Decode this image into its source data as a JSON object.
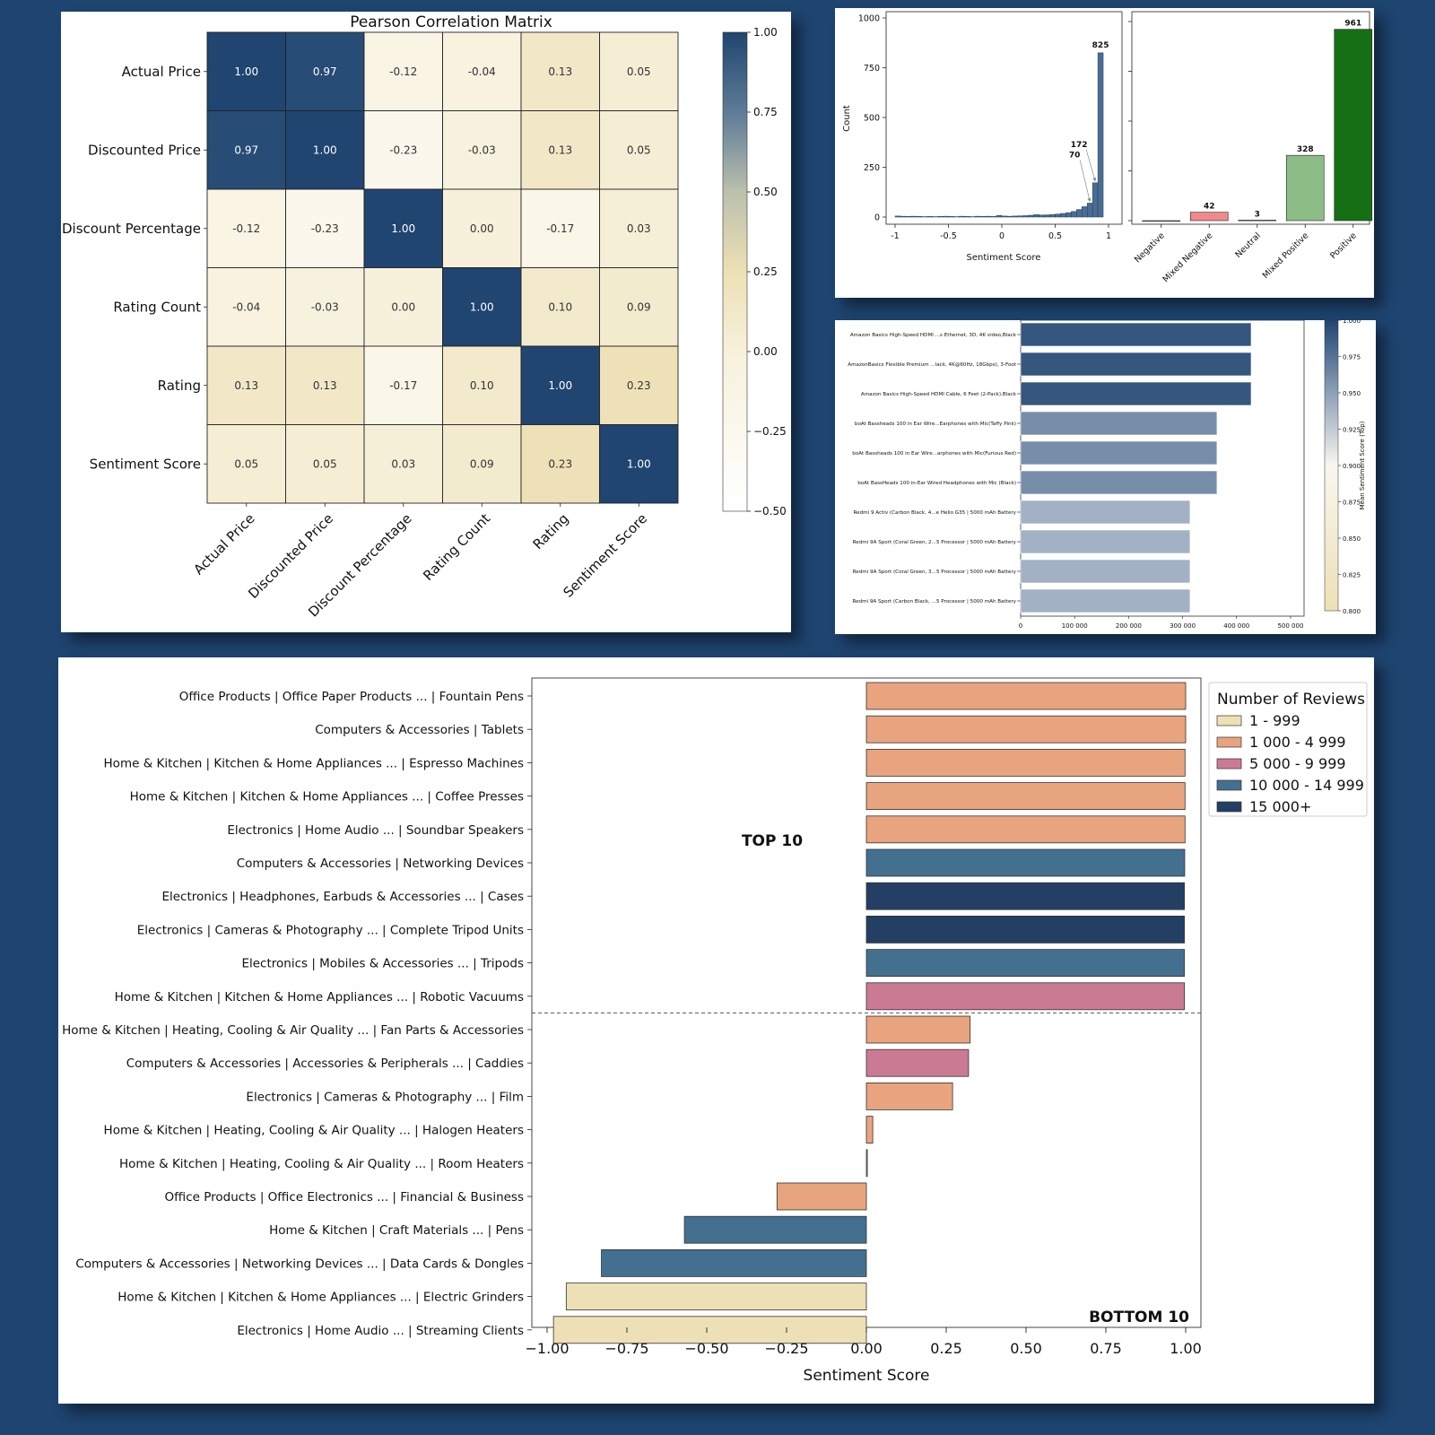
{
  "colors": {
    "background": "#1e4470",
    "navy": "#1f4570",
    "cream": "#ede0b5",
    "peach": "#e8a47e",
    "pink": "#cb7a94",
    "teal": "#43708f",
    "dark_navy": "#233f64",
    "neg_red": "#f08a8a",
    "mixed_pos_green": "#8dbd87",
    "pos_green": "#157015"
  },
  "chart_data": [
    {
      "type": "heatmap",
      "title": "Pearson Correlation Matrix",
      "labels": [
        "Actual Price",
        "Discounted Price",
        "Discount Percentage",
        "Rating Count",
        "Rating",
        "Sentiment Score"
      ],
      "values": [
        [
          1.0,
          0.97,
          -0.12,
          -0.04,
          0.13,
          0.05
        ],
        [
          0.97,
          1.0,
          -0.23,
          -0.03,
          0.13,
          0.05
        ],
        [
          -0.12,
          -0.23,
          1.0,
          0.0,
          -0.17,
          0.03
        ],
        [
          -0.04,
          -0.03,
          0.0,
          1.0,
          0.1,
          0.09
        ],
        [
          0.13,
          0.13,
          -0.17,
          0.1,
          1.0,
          0.23
        ],
        [
          0.05,
          0.05,
          0.03,
          0.09,
          0.23,
          1.0
        ]
      ],
      "value_labels": [
        [
          "1.00",
          "0.97",
          "-0.12",
          "-0.04",
          "0.13",
          "0.05"
        ],
        [
          "0.97",
          "1.00",
          "-0.23",
          "-0.03",
          "0.13",
          "0.05"
        ],
        [
          "-0.12",
          "-0.23",
          "1.00",
          "0.00",
          "-0.17",
          "0.03"
        ],
        [
          "-0.04",
          "-0.03",
          "0.00",
          "1.00",
          "0.10",
          "0.09"
        ],
        [
          "0.13",
          "0.13",
          "-0.17",
          "0.10",
          "1.00",
          "0.23"
        ],
        [
          "0.05",
          "0.05",
          "0.03",
          "0.09",
          "0.23",
          "1.00"
        ]
      ],
      "colorbar": {
        "range": [
          -0.5,
          1.0
        ],
        "ticks": [
          1.0,
          0.75,
          0.5,
          0.25,
          0.0,
          -0.25,
          -0.5
        ],
        "tick_labels": [
          "1.00",
          "0.75",
          "0.50",
          "0.25",
          "0.00",
          "−0.25",
          "−0.50"
        ]
      }
    },
    {
      "type": "bar",
      "subtype": "histogram",
      "xlabel": "Sentiment Score",
      "ylabel": "Count",
      "xlim": [
        -1,
        1
      ],
      "ylim": [
        0,
        1000
      ],
      "xticks": [
        -1,
        -0.5,
        0,
        0.5,
        1
      ],
      "xtick_labels": [
        "-1",
        "-0.5",
        "0",
        "0.5",
        "1"
      ],
      "yticks": [
        0,
        250,
        500,
        750,
        1000
      ],
      "ytick_labels": [
        "0",
        "250",
        "500",
        "750",
        "1000"
      ],
      "bins": [
        {
          "x0": -1.0,
          "x1": -0.95,
          "count": 5
        },
        {
          "x0": -0.95,
          "x1": -0.9,
          "count": 4
        },
        {
          "x0": -0.9,
          "x1": -0.85,
          "count": 3
        },
        {
          "x0": -0.85,
          "x1": -0.8,
          "count": 4
        },
        {
          "x0": -0.8,
          "x1": -0.75,
          "count": 3
        },
        {
          "x0": -0.75,
          "x1": -0.7,
          "count": 2
        },
        {
          "x0": -0.7,
          "x1": -0.65,
          "count": 3
        },
        {
          "x0": -0.65,
          "x1": -0.6,
          "count": 2
        },
        {
          "x0": -0.6,
          "x1": -0.55,
          "count": 3
        },
        {
          "x0": -0.55,
          "x1": -0.5,
          "count": 4
        },
        {
          "x0": -0.5,
          "x1": -0.45,
          "count": 3
        },
        {
          "x0": -0.45,
          "x1": -0.4,
          "count": 2
        },
        {
          "x0": -0.4,
          "x1": -0.35,
          "count": 4
        },
        {
          "x0": -0.35,
          "x1": -0.3,
          "count": 3
        },
        {
          "x0": -0.3,
          "x1": -0.25,
          "count": 2
        },
        {
          "x0": -0.25,
          "x1": -0.2,
          "count": 4
        },
        {
          "x0": -0.2,
          "x1": -0.15,
          "count": 3
        },
        {
          "x0": -0.15,
          "x1": -0.1,
          "count": 4
        },
        {
          "x0": -0.1,
          "x1": -0.05,
          "count": 3
        },
        {
          "x0": -0.05,
          "x1": 0.0,
          "count": 8
        },
        {
          "x0": 0.0,
          "x1": 0.05,
          "count": 5
        },
        {
          "x0": 0.05,
          "x1": 0.1,
          "count": 4
        },
        {
          "x0": 0.1,
          "x1": 0.15,
          "count": 5
        },
        {
          "x0": 0.15,
          "x1": 0.2,
          "count": 6
        },
        {
          "x0": 0.2,
          "x1": 0.25,
          "count": 7
        },
        {
          "x0": 0.25,
          "x1": 0.3,
          "count": 9
        },
        {
          "x0": 0.3,
          "x1": 0.35,
          "count": 12
        },
        {
          "x0": 0.35,
          "x1": 0.4,
          "count": 10
        },
        {
          "x0": 0.4,
          "x1": 0.45,
          "count": 11
        },
        {
          "x0": 0.45,
          "x1": 0.5,
          "count": 13
        },
        {
          "x0": 0.5,
          "x1": 0.55,
          "count": 15
        },
        {
          "x0": 0.55,
          "x1": 0.6,
          "count": 18
        },
        {
          "x0": 0.6,
          "x1": 0.65,
          "count": 22
        },
        {
          "x0": 0.65,
          "x1": 0.7,
          "count": 28
        },
        {
          "x0": 0.7,
          "x1": 0.75,
          "count": 38
        },
        {
          "x0": 0.75,
          "x1": 0.8,
          "count": 52
        },
        {
          "x0": 0.8,
          "x1": 0.85,
          "count": 70
        },
        {
          "x0": 0.85,
          "x1": 0.9,
          "count": 172
        },
        {
          "x0": 0.9,
          "x1": 0.95,
          "count": 825
        }
      ],
      "annotations": [
        {
          "text": "825",
          "x": 0.925,
          "y": 825
        },
        {
          "text": "172",
          "x": 0.875,
          "y": 172
        },
        {
          "text": "70",
          "x": 0.825,
          "y": 70
        }
      ]
    },
    {
      "type": "bar",
      "categories": [
        "Negative",
        "Mixed Negative",
        "Neutral",
        "Mixed Positive",
        "Positive"
      ],
      "values": [
        0,
        42,
        3,
        328,
        961
      ],
      "data_labels": [
        "",
        "42",
        "3",
        "328",
        "961"
      ],
      "ylim": [
        0,
        1000
      ]
    },
    {
      "type": "bar",
      "orientation": "horizontal",
      "categories": [
        "Amazon Basics High-Speed HDMI ...s Ethernet, 3D, 4K video,Black",
        "AmazonBasics Flexible Premium ...lack, 4K@60Hz, 18Gbps), 3-Foot",
        "Amazon Basics High-Speed HDMI Cable, 6 Feet (2-Pack),Black",
        "boAt Bassheads 100 in Ear Wire...Earphones with Mic(Taffy Pink)",
        "boAt Bassheads 100 in Ear Wire...arphones with Mic(Furious Red)",
        "boAt BassHeads 100 in-Ear Wired Headphones with Mic (Black)",
        "Redmi 9 Activ (Carbon Black, 4...e Helio G35 | 5000 mAh Battery",
        "Redmi 9A Sport (Coral Green, 2...5 Processor | 5000 mAh Battery",
        "Redmi 9A Sport (Coral Green, 3...5 Processor | 5000 mAh Battery",
        "Redmi 9A Sport (Carbon Black, ...5 Processor | 5000 mAh Battery"
      ],
      "values": [
        426973,
        426973,
        426973,
        363713,
        363713,
        363713,
        313832,
        313832,
        313832,
        313832
      ],
      "color_values": [
        0.99,
        0.99,
        0.99,
        0.96,
        0.96,
        0.96,
        0.94,
        0.94,
        0.94,
        0.94
      ],
      "xlim": [
        0,
        525000
      ],
      "xticks": [
        0,
        100000,
        200000,
        300000,
        400000,
        500000
      ],
      "xtick_labels": [
        "0",
        "100 000",
        "200 000",
        "300 000",
        "400 000",
        "500 000"
      ],
      "colorbar": {
        "label": "Mean Sentiment Score (Top)",
        "range": [
          0.8,
          1.0
        ],
        "ticks": [
          1.0,
          0.975,
          0.95,
          0.925,
          0.9,
          0.875,
          0.85,
          0.825,
          0.8
        ],
        "tick_labels": [
          "1.000",
          "0.975",
          "0.950",
          "0.925",
          "0.900",
          "0.875",
          "0.850",
          "0.825",
          "0.800"
        ]
      }
    },
    {
      "type": "bar",
      "orientation": "horizontal",
      "xlabel": "Sentiment Score",
      "xlim": [
        -1.1,
        1.05
      ],
      "xticks": [
        -1.0,
        -0.75,
        -0.5,
        -0.25,
        0.0,
        0.25,
        0.5,
        0.75,
        1.0
      ],
      "xtick_labels": [
        "−1.00",
        "−0.75",
        "−0.50",
        "−0.25",
        "0.00",
        "0.25",
        "0.50",
        "0.75",
        "1.00"
      ],
      "categories": [
        "Office Products | Office Paper Products ... | Fountain Pens",
        "Computers & Accessories | Tablets",
        "Home & Kitchen | Kitchen & Home Appliances ... | Espresso Machines",
        "Home & Kitchen | Kitchen & Home Appliances ... | Coffee Presses",
        "Electronics | Home Audio ... | Soundbar Speakers",
        "Computers & Accessories | Networking Devices",
        "Electronics | Headphones, Earbuds & Accessories ... | Cases",
        "Electronics | Cameras & Photography ... | Complete Tripod Units",
        "Electronics | Mobiles & Accessories ... | Tripods",
        "Home & Kitchen | Kitchen & Home Appliances ... | Robotic Vacuums",
        "Home & Kitchen | Heating, Cooling & Air Quality ... | Fan Parts & Accessories",
        "Computers & Accessories | Accessories & Peripherals ... | Caddies",
        "Electronics | Cameras & Photography ... | Film",
        "Home & Kitchen | Heating, Cooling & Air Quality ... | Halogen Heaters",
        "Home & Kitchen | Heating, Cooling & Air Quality ... | Room Heaters",
        "Office Products | Office Electronics ... | Financial & Business",
        "Home & Kitchen | Craft Materials ... | Pens",
        "Computers & Accessories | Networking Devices ... | Data Cards & Dongles",
        "Home & Kitchen | Kitchen & Home Appliances ... | Electric Grinders",
        "Electronics | Home Audio ... | Streaming Clients"
      ],
      "values": [
        1.0,
        1.0,
        0.998,
        0.998,
        0.998,
        0.997,
        0.996,
        0.996,
        0.996,
        0.996,
        0.325,
        0.32,
        0.27,
        0.02,
        0.003,
        -0.28,
        -0.57,
        -0.83,
        -0.94,
        -0.98
      ],
      "review_groups": [
        "1 000 - 4 999",
        "1 000 - 4 999",
        "1 000 - 4 999",
        "1 000 - 4 999",
        "1 000 - 4 999",
        "10 000 - 14 999",
        "15 000+",
        "15 000+",
        "10 000 - 14 999",
        "5 000 - 9 999",
        "1 000 - 4 999",
        "5 000 - 9 999",
        "1 000 - 4 999",
        "1 000 - 4 999",
        "1 000 - 4 999",
        "1 000 - 4 999",
        "10 000 - 14 999",
        "10 000 - 14 999",
        "1 - 999",
        "1 - 999"
      ],
      "annotations": [
        "TOP 10",
        "BOTTOM 10"
      ],
      "legend": {
        "title": "Number of Reviews",
        "position": "top-right",
        "entries": [
          {
            "label": "1 - 999",
            "color": "#ede0b5"
          },
          {
            "label": "1 000 - 4 999",
            "color": "#e8a47e"
          },
          {
            "label": "5 000 - 9 999",
            "color": "#cb7a94"
          },
          {
            "label": "10 000 - 14 999",
            "color": "#43708f"
          },
          {
            "label": "15 000+",
            "color": "#233f64"
          }
        ]
      }
    }
  ]
}
